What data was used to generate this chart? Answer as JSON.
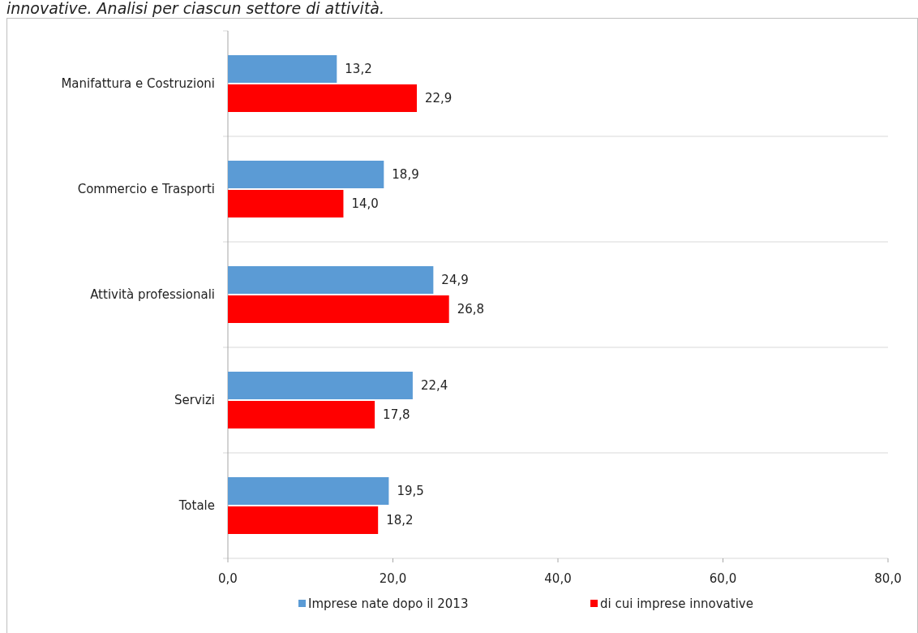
{
  "chart_data": {
    "type": "bar",
    "orientation": "horizontal",
    "title": "innovative. Analisi per ciascun settore di attività.",
    "categories": [
      "Manifattura e Costruzioni",
      "Commercio e Trasporti",
      "Attività professionali",
      "Servizi",
      "Totale"
    ],
    "series": [
      {
        "name": "Imprese nate dopo il 2013",
        "color": "#5b9bd5",
        "values": [
          13.2,
          18.9,
          24.9,
          22.4,
          19.5
        ],
        "value_labels": [
          "13,2",
          "18,9",
          "24,9",
          "22,4",
          "19,5"
        ]
      },
      {
        "name": "di cui imprese innovative",
        "color": "#ff0000",
        "values": [
          22.9,
          14.0,
          26.8,
          17.8,
          18.2
        ],
        "value_labels": [
          "22,9",
          "14,0",
          "26,8",
          "17,8",
          "18,2"
        ]
      }
    ],
    "xlim": [
      0,
      80
    ],
    "xticks": [
      {
        "value": 0,
        "label": "0,0"
      },
      {
        "value": 20,
        "label": "20,0"
      },
      {
        "value": 40,
        "label": "40,0"
      },
      {
        "value": 60,
        "label": "60,0"
      },
      {
        "value": 80,
        "label": "80,0"
      }
    ],
    "grid": false,
    "legend": "bottom"
  }
}
